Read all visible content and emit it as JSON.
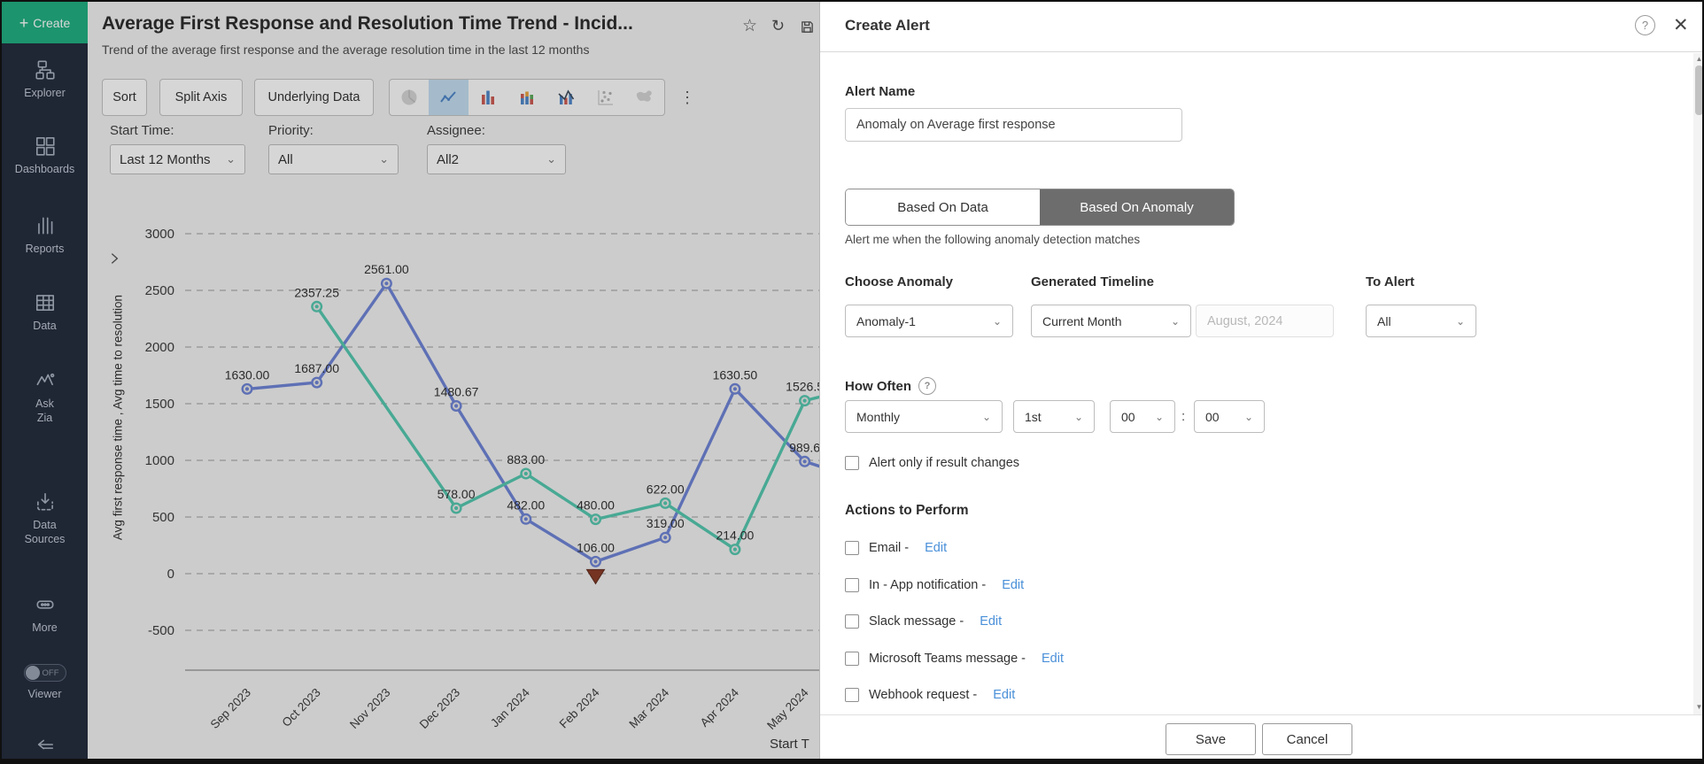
{
  "colors": {
    "accent_green": "#1fae80",
    "series_blue": "#6e84d6",
    "series_teal": "#54c7ae",
    "anomaly_marker": "#8a3b26",
    "edit_link_blue": "#4a90d9",
    "active_tab_gray": "#6d6d6d",
    "selected_tile_blue": "#c3ddf0"
  },
  "sidebar": {
    "create_label": "Create",
    "items": [
      {
        "label": "Explorer",
        "icon": "explorer-icon"
      },
      {
        "label": "Dashboards",
        "icon": "dashboards-icon"
      },
      {
        "label": "Reports",
        "icon": "reports-icon"
      },
      {
        "label": "Data",
        "icon": "data-icon"
      },
      {
        "label": "Ask Zia",
        "icon": "ask-zia-icon"
      },
      {
        "label": "Data Sources",
        "icon": "data-sources-icon"
      },
      {
        "label": "More",
        "icon": "more-icon"
      }
    ],
    "viewer_toggle": "OFF",
    "viewer_label": "Viewer"
  },
  "report": {
    "title": "Average First Response and Resolution Time Trend - Incid...",
    "subtitle": "Trend of the average first response and the average resolution time in the last 12 months",
    "header_icons": [
      "star-icon",
      "refresh-icon",
      "save-icon"
    ],
    "toolbar": {
      "buttons": [
        "Sort",
        "Split Axis",
        "Underlying Data"
      ],
      "chart_types": [
        {
          "name": "pie-chart-icon",
          "state": "disabled"
        },
        {
          "name": "line-chart-icon",
          "state": "selected"
        },
        {
          "name": "bar-chart-icon",
          "state": "normal"
        },
        {
          "name": "stacked-bar-icon",
          "state": "normal"
        },
        {
          "name": "combo-chart-icon",
          "state": "normal"
        },
        {
          "name": "scatter-chart-icon",
          "state": "disabled"
        },
        {
          "name": "map-chart-icon",
          "state": "disabled"
        }
      ],
      "more_menu": "⋮"
    },
    "filters": [
      {
        "label": "Start Time:",
        "value": "Last 12 Months"
      },
      {
        "label": "Priority:",
        "value": "All"
      },
      {
        "label": "Assignee:",
        "value": "All2"
      }
    ]
  },
  "chart_data": {
    "type": "line",
    "categories": [
      "Sep 2023",
      "Oct 2023",
      "Nov 2023",
      "Dec 2023",
      "Jan 2024",
      "Feb 2024",
      "Mar 2024",
      "Apr 2024",
      "May 2024"
    ],
    "series": [
      {
        "name": "Avg first response time",
        "color": "#6e84d6",
        "values": [
          1630.0,
          1687.0,
          2561.0,
          1480.67,
          482.0,
          106.0,
          319.0,
          1630.5,
          989.6
        ],
        "labels": [
          "1630.00",
          "1687.00",
          "2561.00",
          "1480.67",
          "482.00",
          "106.00",
          "319.00",
          "1630.50",
          "989.6"
        ]
      },
      {
        "name": "Avg time to resolution",
        "color": "#54c7ae",
        "values": [
          null,
          2357.25,
          null,
          578.0,
          883.0,
          480.0,
          622.0,
          214.0,
          1526.5
        ],
        "labels": [
          null,
          "2357.25",
          null,
          "578.00",
          "883.00",
          "480.00",
          "622.00",
          "214.00",
          "1526.5"
        ]
      }
    ],
    "ylabel": "Avg first response time , Avg time to resolution",
    "xlabel": "Start T",
    "yticks": [
      3000,
      2500,
      2000,
      1500,
      1000,
      500,
      0,
      -500
    ],
    "ylim": [
      -850,
      3300
    ],
    "grid": "dashed-horizontal",
    "legend": "none",
    "anomaly": {
      "series": 0,
      "category": "Feb 2024",
      "marker": "down-triangle",
      "color": "#8a3b26"
    }
  },
  "modal": {
    "title": "Create Alert",
    "alert_name": {
      "label": "Alert Name",
      "value": "Anomaly on Average first response"
    },
    "tabs": [
      {
        "label": "Based On Data",
        "active": false
      },
      {
        "label": "Based On Anomaly",
        "active": true
      }
    ],
    "caption": "Alert me when the following anomaly detection matches",
    "choose_anomaly": {
      "label": "Choose Anomaly",
      "value": "Anomaly-1"
    },
    "generated_timeline": {
      "label": "Generated Timeline",
      "value": "Current Month",
      "date_value": "August, 2024"
    },
    "to_alert": {
      "label": "To Alert",
      "value": "All"
    },
    "how_often": {
      "label": "How Often",
      "frequency": "Monthly",
      "day": "1st",
      "hour": "00",
      "separator": ":",
      "minute": "00"
    },
    "result_checkbox": "Alert only if result changes",
    "actions": {
      "heading": "Actions to Perform",
      "items": [
        {
          "label": "Email -",
          "link": "Edit"
        },
        {
          "label": "In - App notification -",
          "link": "Edit"
        },
        {
          "label": "Slack message -",
          "link": "Edit"
        },
        {
          "label": "Microsoft Teams message -",
          "link": "Edit"
        },
        {
          "label": "Webhook request -",
          "link": "Edit"
        }
      ]
    },
    "footer": {
      "save": "Save",
      "cancel": "Cancel"
    }
  }
}
